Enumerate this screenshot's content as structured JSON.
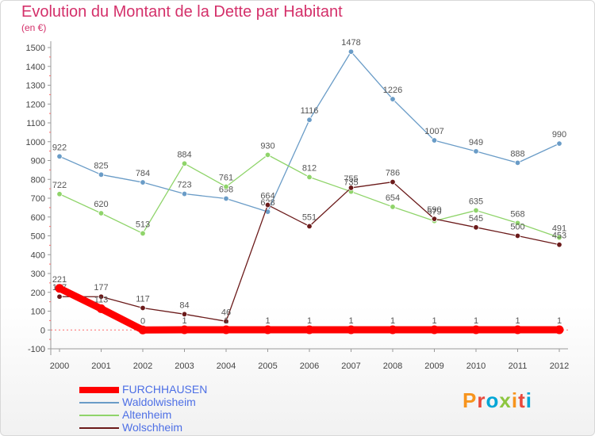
{
  "title": "Evolution du Montant de la Dette par Habitant",
  "subtitle": "(en €)",
  "logo_text": "Proxiti",
  "chart_data": {
    "type": "line",
    "title": "Evolution du Montant de la Dette par Habitant",
    "ylabel": "(en €)",
    "x": [
      "2000",
      "2001",
      "2002",
      "2003",
      "2004",
      "2005",
      "2006",
      "2007",
      "2008",
      "2009",
      "2010",
      "2011",
      "2012"
    ],
    "yticks": [
      -100,
      0,
      100,
      200,
      300,
      400,
      500,
      600,
      700,
      800,
      900,
      1000,
      1100,
      1200,
      1300,
      1400,
      1500
    ],
    "ylim": [
      -100,
      1500
    ],
    "grid": false,
    "legend_position": "bottom-left",
    "series": [
      {
        "name": "FURCHHAUSEN",
        "color": "#ff0000",
        "values": [
          221,
          113,
          0,
          1,
          1,
          1,
          1,
          1,
          1,
          1,
          1,
          1,
          1
        ]
      },
      {
        "name": "Waldolwisheim",
        "color": "#6a9cc7",
        "values": [
          922,
          825,
          784,
          723,
          698,
          628,
          1116,
          1478,
          1226,
          1007,
          949,
          888,
          990
        ]
      },
      {
        "name": "Altenheim",
        "color": "#8fd46a",
        "values": [
          722,
          620,
          513,
          884,
          761,
          930,
          812,
          735,
          654,
          579,
          635,
          568,
          491
        ]
      },
      {
        "name": "Wolschheim",
        "color": "#6b1a1a",
        "values": [
          177,
          177,
          117,
          84,
          46,
          664,
          551,
          755,
          786,
          590,
          545,
          500,
          453
        ]
      }
    ]
  }
}
